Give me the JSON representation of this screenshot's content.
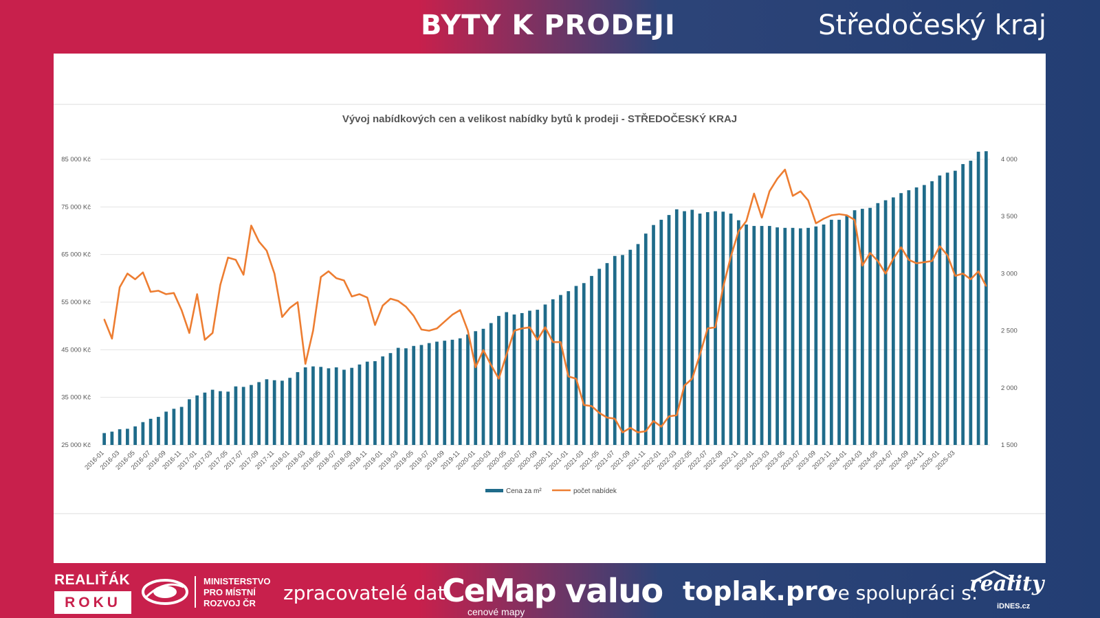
{
  "header": {
    "title": "BYTY K PRODEJI",
    "region": "Středočeský kraj"
  },
  "chart_data": {
    "type": "bar+line",
    "title": "Vývoj nabídkových cen a velikost nabídky bytů k prodeji - STŘEDOČESKÝ KRAJ",
    "legend_position": "bottom",
    "grid": true,
    "left_axis": {
      "min": 25000,
      "max": 85000,
      "ticks": [
        25000,
        35000,
        45000,
        55000,
        65000,
        75000,
        85000
      ],
      "tick_labels": [
        "25 000 Kč",
        "35 000 Kč",
        "45 000 Kč",
        "55 000 Kč",
        "65 000 Kč",
        "75 000 Kč",
        "85 000 Kč"
      ]
    },
    "right_axis": {
      "min": 1500,
      "max": 4000,
      "ticks": [
        1500,
        2000,
        2500,
        3000,
        3500,
        4000
      ],
      "tick_labels": [
        "1 500",
        "2 000",
        "2 500",
        "3 000",
        "3 500",
        "4 000"
      ]
    },
    "x_tick_labels": [
      "2016-01",
      "2016-03",
      "2016-05",
      "2016-07",
      "2016-09",
      "2016-11",
      "2017-01",
      "2017-03",
      "2017-05",
      "2017-07",
      "2017-09",
      "2017-11",
      "2018-01",
      "2018-03",
      "2018-05",
      "2018-07",
      "2018-09",
      "2018-11",
      "2019-01",
      "2019-03",
      "2019-05",
      "2019-07",
      "2019-09",
      "2019-11",
      "2020-01",
      "2020-03",
      "2020-05",
      "2020-07",
      "2020-09",
      "2020-11",
      "2021-01",
      "2021-03",
      "2021-05",
      "2021-07",
      "2021-09",
      "2021-11",
      "2022-01",
      "2022-03",
      "2022-05",
      "2022-07",
      "2022-09",
      "2022-11",
      "2023-01",
      "2023-03",
      "2023-05",
      "2023-07",
      "2023-09",
      "2023-11",
      "2024-01",
      "2024-03",
      "2024-05",
      "2024-07",
      "2024-09",
      "2024-11",
      "2025-01",
      "2025-03"
    ],
    "series": [
      {
        "name": "Cena za m²",
        "type": "bar",
        "axis": "left",
        "color": "#1f6b8a",
        "values": [
          27500,
          27800,
          28300,
          28400,
          28900,
          29800,
          30500,
          30900,
          32000,
          32600,
          33000,
          34600,
          35400,
          36000,
          36600,
          36300,
          36200,
          37300,
          37200,
          37600,
          38200,
          38800,
          38600,
          38500,
          39100,
          40300,
          41300,
          41500,
          41400,
          41100,
          41300,
          40800,
          41200,
          41900,
          42500,
          42600,
          43600,
          44300,
          45400,
          45300,
          45800,
          46000,
          46400,
          46700,
          46900,
          47100,
          47400,
          48200,
          48900,
          49400,
          50600,
          52100,
          52900,
          52400,
          52700,
          53200,
          53400,
          54500,
          55600,
          56500,
          57300,
          58400,
          59000,
          60500,
          62000,
          63200,
          64700,
          64900,
          66000,
          67200,
          69400,
          71200,
          72300,
          73300,
          74500,
          74100,
          74400,
          73600,
          73900,
          74100,
          74000,
          73600,
          72200,
          71300,
          71000,
          71000,
          71000,
          70700,
          70600,
          70600,
          70500,
          70600,
          70900,
          71300,
          72300,
          72300,
          73200,
          74300,
          74600,
          74800,
          75800,
          76400,
          77000,
          77900,
          78500,
          79100,
          79600,
          80400,
          81600,
          82200,
          82600,
          84000,
          84700,
          86600,
          86700
        ]
      },
      {
        "name": "počet nabídek",
        "type": "line",
        "axis": "right",
        "color": "#ed7d31",
        "values": [
          2600,
          2430,
          2880,
          3000,
          2950,
          3010,
          2840,
          2850,
          2820,
          2830,
          2680,
          2480,
          2820,
          2420,
          2480,
          2900,
          3140,
          3120,
          2990,
          3420,
          3280,
          3200,
          3000,
          2620,
          2700,
          2750,
          2210,
          2500,
          2970,
          3020,
          2960,
          2940,
          2800,
          2820,
          2790,
          2550,
          2720,
          2780,
          2760,
          2710,
          2630,
          2510,
          2500,
          2520,
          2580,
          2640,
          2680,
          2500,
          2180,
          2330,
          2200,
          2080,
          2290,
          2500,
          2520,
          2530,
          2420,
          2530,
          2400,
          2400,
          2100,
          2080,
          1850,
          1840,
          1780,
          1740,
          1730,
          1610,
          1650,
          1610,
          1620,
          1710,
          1660,
          1750,
          1760,
          2020,
          2080,
          2290,
          2520,
          2530,
          2880,
          3150,
          3370,
          3460,
          3700,
          3490,
          3720,
          3830,
          3910,
          3680,
          3720,
          3640,
          3440,
          3480,
          3510,
          3520,
          3510,
          3470,
          3070,
          3180,
          3110,
          3000,
          3130,
          3230,
          3120,
          3090,
          3100,
          3110,
          3240,
          3160,
          2980,
          3000,
          2950,
          3020,
          2890
        ]
      }
    ]
  },
  "footer": {
    "realitak_top": "REALIŤÁK",
    "realitak_bottom": "ROKU",
    "ministry_line1": "MINISTERSTVO",
    "ministry_line2": "PRO MÍSTNÍ",
    "ministry_line3": "ROZVOJ ČR",
    "processors_label": "zpracovatelé dat:",
    "cemap": "CeMap",
    "cemap_sub": "cenové mapy",
    "valuo": "valuo",
    "toplak": "toplak.pro",
    "cooperation_label": "ve spolupráci s:",
    "reality": "reality",
    "idnes": "iDNES.cz"
  }
}
